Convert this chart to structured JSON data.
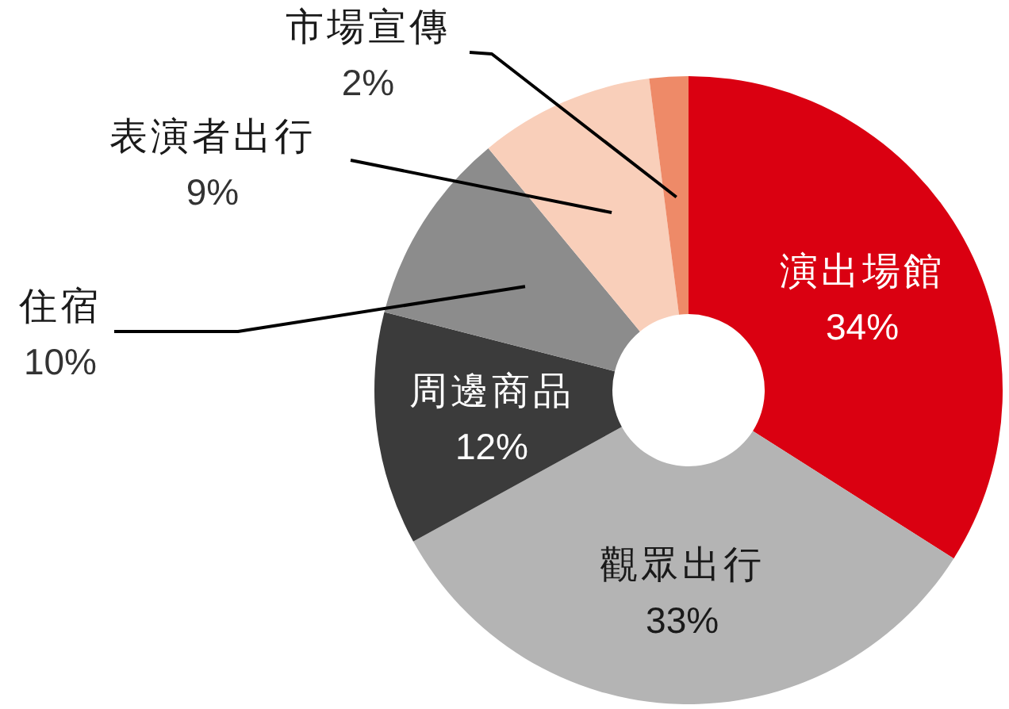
{
  "chart_data": {
    "type": "donut",
    "categories": [
      "演出場館",
      "觀眾出行",
      "周邊商品",
      "住宿",
      "表演者出行",
      "市場宣傳"
    ],
    "values": [
      34,
      33,
      12,
      10,
      9,
      2
    ],
    "colors": [
      "#da0011",
      "#b4b4b4",
      "#3b3b3b",
      "#8c8c8c",
      "#f9cfba",
      "#ee8a68"
    ],
    "value_labels": [
      "34%",
      "33%",
      "12%",
      "10%",
      "9%",
      "2%"
    ]
  }
}
